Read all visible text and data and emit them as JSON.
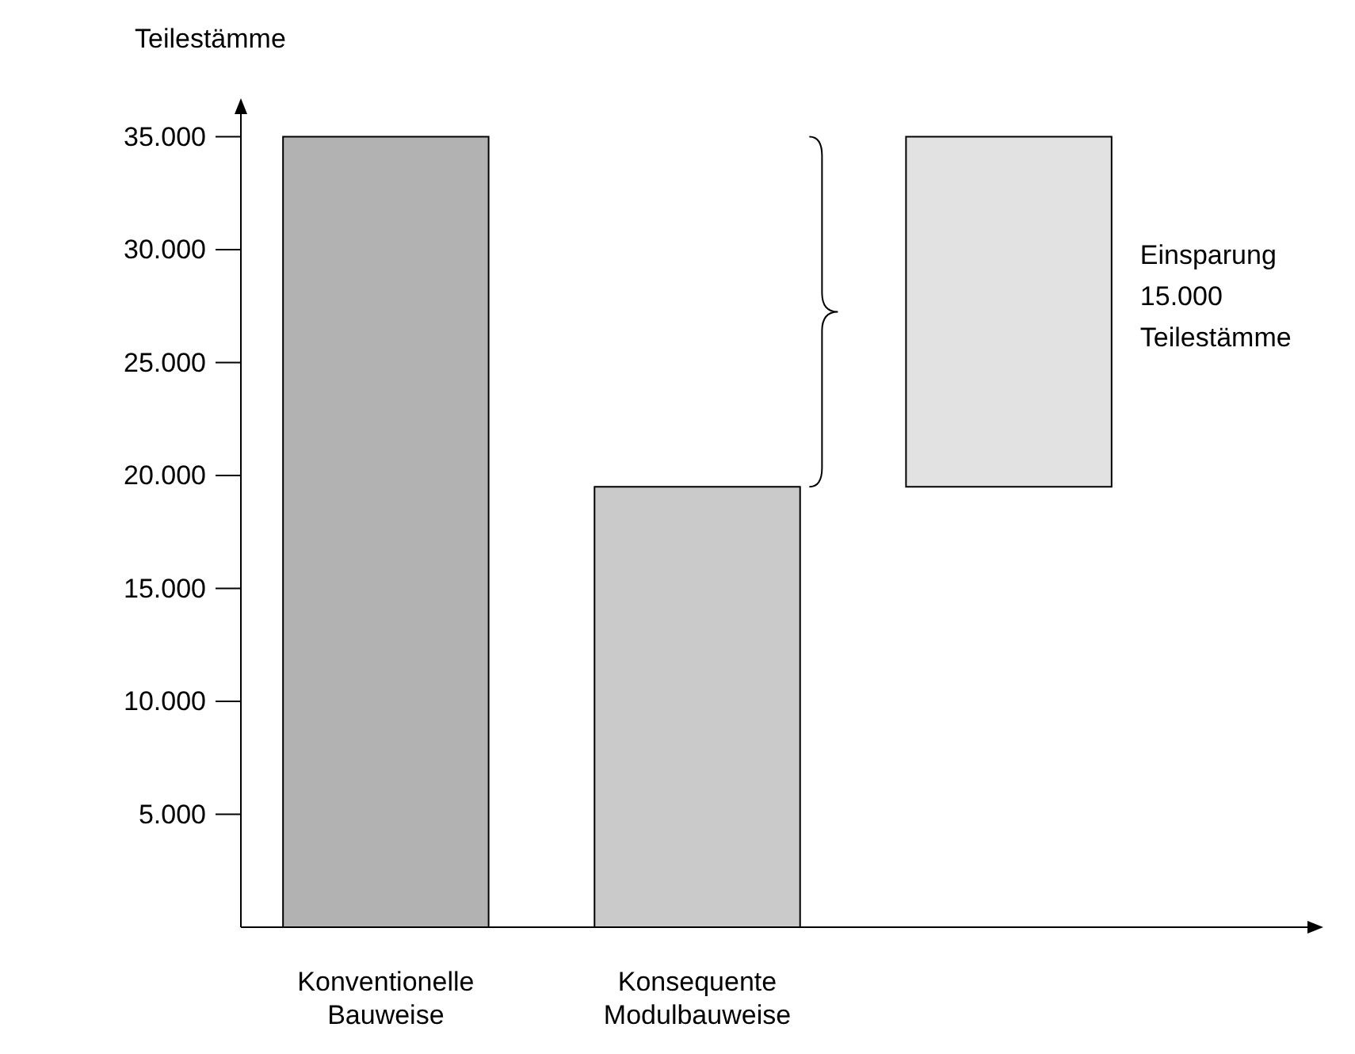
{
  "chart_data": {
    "type": "bar",
    "ylabel": "Teilestämme",
    "categories": [
      "Konventionelle\nBauweise",
      "Konsequente\nModulbauweise",
      null
    ],
    "values": [
      35000,
      19500,
      15500
    ],
    "base": [
      0,
      0,
      19500
    ],
    "colors": [
      "#b2b2b2",
      "#cacaca",
      "#e2e2e2"
    ],
    "ylim": [
      0,
      36000
    ],
    "yticks": [
      {
        "value": 5000,
        "label": "5.000"
      },
      {
        "value": 10000,
        "label": "10.000"
      },
      {
        "value": 15000,
        "label": "15.000"
      },
      {
        "value": 20000,
        "label": "20.000"
      },
      {
        "value": 25000,
        "label": "25.000"
      },
      {
        "value": 30000,
        "label": "30.000"
      },
      {
        "value": 35000,
        "label": "35.000"
      }
    ],
    "annotations": [
      "Einsparung\n15.000\nTeilestämme"
    ]
  }
}
